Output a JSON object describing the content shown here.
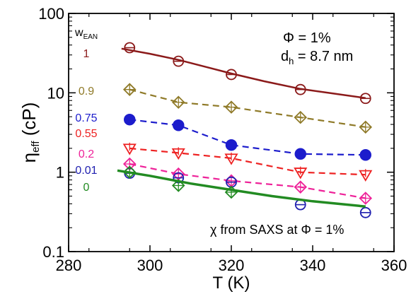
{
  "chart_data": {
    "type": "scatter",
    "xlabel": "T (K)",
    "ylabel_main": "η",
    "ylabel_sub": "eff",
    "ylabel_unit": " (cP)",
    "xlim": [
      280,
      360
    ],
    "ylim": [
      0.1,
      100
    ],
    "yscale": "log",
    "xticks": [
      280,
      300,
      320,
      340,
      360
    ],
    "yticks": [
      {
        "value": 0.1,
        "label": "0.1"
      },
      {
        "value": 1,
        "label": "1"
      },
      {
        "value": 10,
        "label": "10"
      },
      {
        "value": 100,
        "label": "100"
      }
    ],
    "grid": false,
    "legend_title_main": "w",
    "legend_title_sub": "EAN",
    "annotation_phi": "Φ = 1%",
    "annotation_dh_main": "d",
    "annotation_dh_sub": "h",
    "annotation_dh_rest": " = 8.7 nm",
    "annotation_bottom": "χ from SAXS at Φ = 1%",
    "series": [
      {
        "name": "1",
        "color": "#8b1a1a",
        "marker": "circle-open-bar",
        "linestyle": "solid",
        "x": [
          295,
          307,
          320,
          337,
          353
        ],
        "y": [
          37,
          25,
          17,
          11,
          8.5
        ],
        "fit_x": [
          293,
          300,
          307,
          314,
          320,
          328,
          337,
          345,
          353
        ],
        "fit_y": [
          36,
          31,
          26,
          21,
          17.5,
          14,
          11.2,
          9.8,
          8.6
        ]
      },
      {
        "name": "0.9",
        "color": "#8f7a28",
        "marker": "diamond-open-cross",
        "linestyle": "dashed",
        "x": [
          295,
          307,
          320,
          337,
          353
        ],
        "y": [
          11,
          7.6,
          6.6,
          4.9,
          3.7
        ]
      },
      {
        "name": "0.75",
        "color": "#1c1ccc",
        "marker": "circle-filled",
        "linestyle": "dashed",
        "x": [
          295,
          307,
          320,
          337,
          353
        ],
        "y": [
          4.6,
          3.9,
          2.2,
          1.7,
          1.65
        ]
      },
      {
        "name": "0.55",
        "color": "#ee2222",
        "marker": "triangle-down-open-bar",
        "linestyle": "dashed",
        "x": [
          295,
          307,
          320,
          337,
          353
        ],
        "y": [
          2.0,
          1.75,
          1.5,
          1.0,
          0.93
        ]
      },
      {
        "name": "0.2",
        "color": "#ee2299",
        "marker": "diamond-open-cross",
        "linestyle": "dashed",
        "x": [
          295,
          307,
          320,
          337,
          353
        ],
        "y": [
          1.27,
          0.95,
          0.78,
          0.65,
          0.47
        ]
      },
      {
        "name": "0.01",
        "color": "#2020b0",
        "marker": "circle-open-bar",
        "linestyle": "none",
        "x": [
          295,
          307,
          320,
          337,
          353
        ],
        "y": [
          0.97,
          0.85,
          0.75,
          0.39,
          0.31
        ]
      },
      {
        "name": "0",
        "color": "#228b22",
        "marker": "diamond-open-cross",
        "linestyle": "solid",
        "x": [
          295,
          307,
          320
        ],
        "y": [
          1.0,
          0.68,
          0.56
        ],
        "fit_x": [
          292,
          300,
          310,
          320,
          330,
          340,
          353
        ],
        "fit_y": [
          1.05,
          0.9,
          0.72,
          0.6,
          0.5,
          0.43,
          0.37
        ]
      }
    ]
  }
}
